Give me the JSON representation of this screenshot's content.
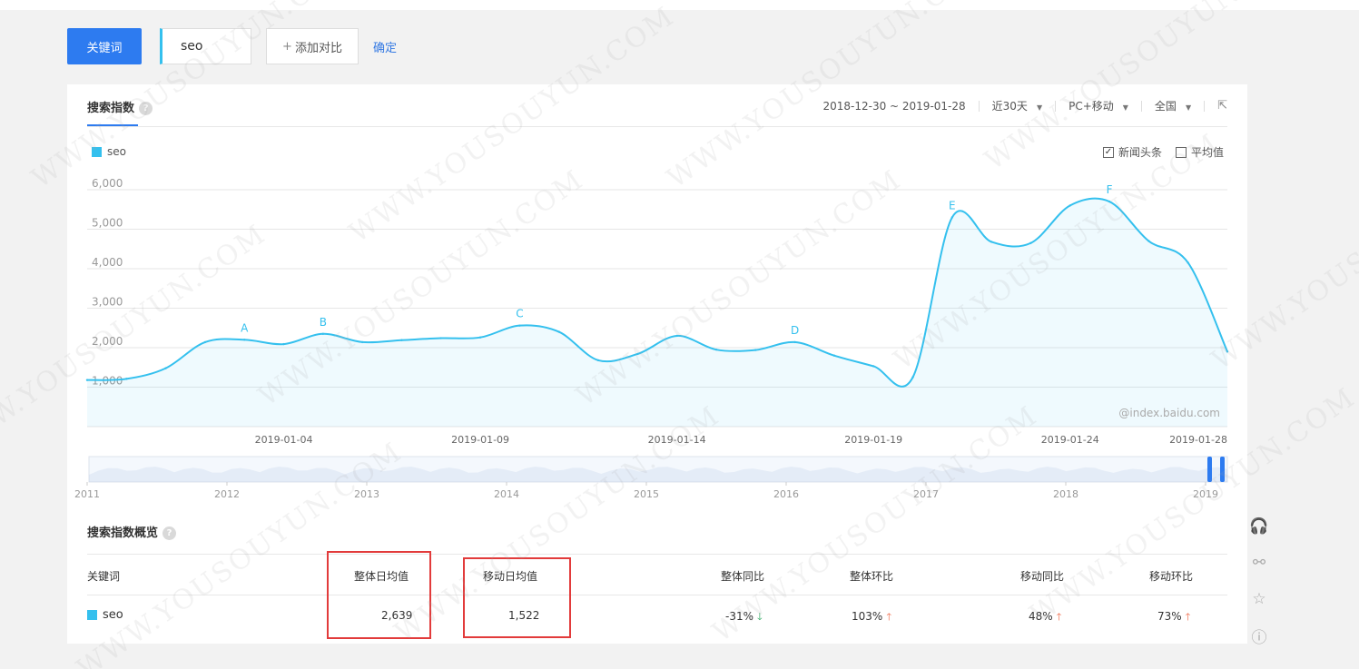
{
  "toolbar": {
    "keyword_tab": "关键词",
    "keyword_value": "seo",
    "add_compare": "添加对比",
    "confirm": "确定"
  },
  "panel": {
    "title": "搜索指数",
    "date_range": "2018-12-30 ~ 2019-01-28",
    "period": "近30天",
    "device": "PC+移动",
    "region": "全国",
    "news_checkbox": "新闻头条",
    "avg_checkbox": "平均值",
    "watermark": "@index.baidu.com"
  },
  "chart_data": {
    "type": "area",
    "legend": [
      "seo"
    ],
    "x": [
      "2018-12-30",
      "2018-12-31",
      "2019-01-01",
      "2019-01-02",
      "2019-01-03",
      "2019-01-04",
      "2019-01-05",
      "2019-01-06",
      "2019-01-07",
      "2019-01-08",
      "2019-01-09",
      "2019-01-10",
      "2019-01-11",
      "2019-01-12",
      "2019-01-13",
      "2019-01-14",
      "2019-01-15",
      "2019-01-16",
      "2019-01-17",
      "2019-01-18",
      "2019-01-19",
      "2019-01-20",
      "2019-01-21",
      "2019-01-22",
      "2019-01-23",
      "2019-01-24",
      "2019-01-25",
      "2019-01-26",
      "2019-01-27",
      "2019-01-28"
    ],
    "series": [
      {
        "name": "seo",
        "color": "#34c0ee",
        "values": [
          1180,
          1210,
          1480,
          2140,
          2200,
          2090,
          2350,
          2140,
          2190,
          2240,
          2260,
          2560,
          2400,
          1680,
          1840,
          2300,
          1950,
          1940,
          2140,
          1800,
          1530,
          1250,
          5300,
          4680,
          4650,
          5600,
          5700,
          4700,
          4150,
          1900
        ]
      }
    ],
    "ylim": [
      0,
      6000
    ],
    "yticks": [
      "1,000",
      "2,000",
      "3,000",
      "4,000",
      "5,000",
      "6,000"
    ],
    "xticks": [
      "2019-01-04",
      "2019-01-09",
      "2019-01-14",
      "2019-01-19",
      "2019-01-24",
      "2019-01-28"
    ],
    "annotations": [
      {
        "label": "A",
        "index": 4
      },
      {
        "label": "B",
        "index": 6
      },
      {
        "label": "C",
        "index": 11
      },
      {
        "label": "D",
        "index": 18
      },
      {
        "label": "E",
        "index": 22
      },
      {
        "label": "F",
        "index": 26
      }
    ],
    "navigator_years": [
      "2011",
      "2012",
      "2013",
      "2014",
      "2015",
      "2016",
      "2017",
      "2018",
      "2019"
    ],
    "grid": true
  },
  "overview": {
    "title": "搜索指数概览",
    "headers": [
      "关键词",
      "整体日均值",
      "移动日均值",
      "整体同比",
      "整体环比",
      "移动同比",
      "移动环比"
    ],
    "row": {
      "keyword": "seo",
      "overall_avg": "2,639",
      "mobile_avg": "1,522",
      "overall_yoy": "-31%",
      "overall_mom": "103%",
      "mobile_yoy": "48%",
      "mobile_mom": "73%"
    }
  },
  "sidebar_icons": [
    "headset-icon",
    "share-icon",
    "star-icon",
    "help-icon"
  ],
  "watermark_text": "WWW.YOUSOUYUN.COM"
}
